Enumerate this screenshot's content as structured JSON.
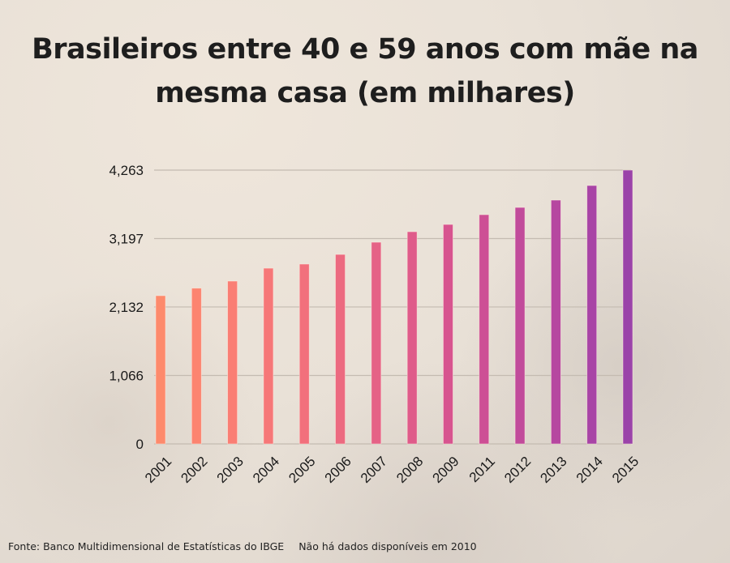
{
  "chart_data": {
    "type": "bar",
    "title": "Brasileiros entre 40 e 59 anos com mãe na mesma casa (em milhares)",
    "xlabel": "",
    "ylabel": "",
    "categories": [
      "2001",
      "2002",
      "2003",
      "2004",
      "2005",
      "2006",
      "2007",
      "2008",
      "2009",
      "2011",
      "2012",
      "2013",
      "2014",
      "2015"
    ],
    "values": [
      2308,
      2425,
      2535,
      2736,
      2800,
      2950,
      3140,
      3304,
      3417,
      3569,
      3682,
      3796,
      4023,
      4263
    ],
    "colors": [
      "#fd8a6c",
      "#fc8470",
      "#fa7e74",
      "#f67778",
      "#f2707c",
      "#ec6a80",
      "#e56286",
      "#df5b8a",
      "#d7548f",
      "#cd4f95",
      "#c14b9b",
      "#b647a0",
      "#a844a6",
      "#9a43a9"
    ],
    "ylim": [
      0,
      4263
    ],
    "yticks": [
      0,
      1066,
      2132,
      3197,
      4263
    ],
    "ytick_labels": [
      "0",
      "1,066",
      "2,132",
      "3,197",
      "4,263"
    ],
    "grid": true,
    "legend": "none"
  },
  "footer": {
    "source": "Fonte: Banco Multidimensional de Estatísticas do IBGE",
    "note": "Não há dados disponíveis em 2010"
  }
}
